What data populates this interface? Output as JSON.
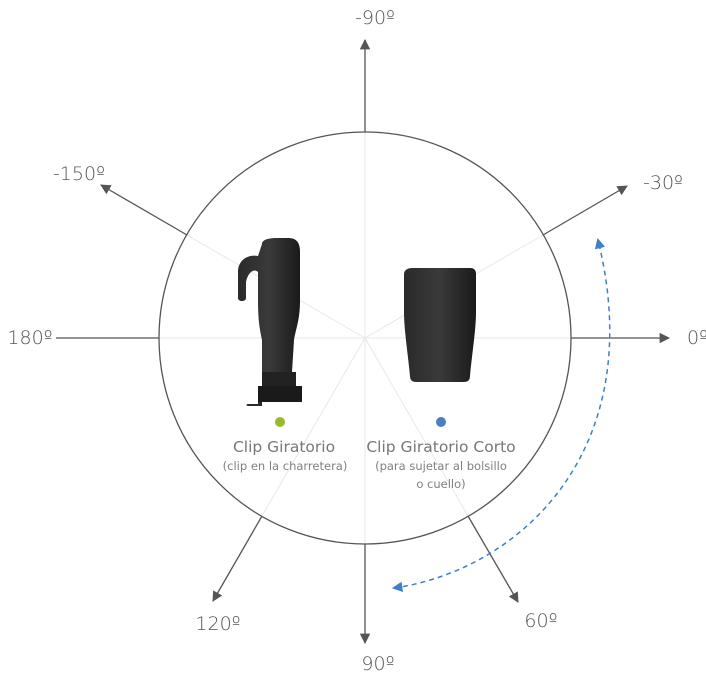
{
  "angles": {
    "neg90": "-90º",
    "neg150": "-150º",
    "neg30": "-30º",
    "d180": "180º",
    "d0": "0º",
    "d120": "120º",
    "d90": "90º",
    "d60": "60º"
  },
  "clips": {
    "left": {
      "title": "Clip Giratorio",
      "subtitle": "(clip en la charretera)",
      "dot_color": "#9aba2a"
    },
    "right": {
      "title": "Clip Giratorio Corto",
      "subtitle_line1": "(para sujetar al bolsillo",
      "subtitle_line2": "o cuello)",
      "dot_color": "#4a7fc1"
    }
  },
  "colors": {
    "axis": "#555555",
    "circle": "#555555",
    "faint_lines": "#e6e6e6",
    "rotation_arrow": "#3f7fc8",
    "device": "#1f1f1f"
  }
}
